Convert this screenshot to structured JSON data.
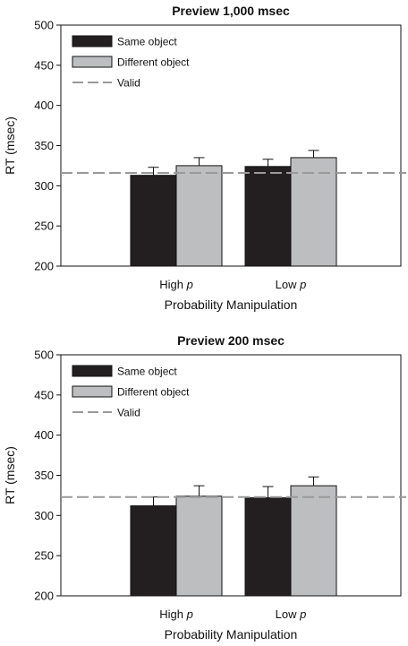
{
  "chart_data": [
    {
      "type": "bar",
      "title": "Preview 1,000 msec",
      "xlabel": "Probability Manipulation",
      "ylabel": "RT (msec)",
      "ylim": [
        200,
        500
      ],
      "yticks": [
        200,
        250,
        300,
        350,
        400,
        450,
        500
      ],
      "categories": [
        {
          "main": "High",
          "italic": "p"
        },
        {
          "main": "Low",
          "italic": "p"
        }
      ],
      "series": [
        {
          "name": "Same object",
          "color": "#231f20",
          "values": [
            313,
            324
          ],
          "errors": [
            10,
            9
          ]
        },
        {
          "name": "Different object",
          "color": "#bcbec0",
          "values": [
            325,
            335
          ],
          "errors": [
            10,
            9
          ]
        }
      ],
      "reference_line": {
        "name": "Valid",
        "value": 316,
        "color": "#999999",
        "style": "dashed"
      },
      "legend_position": "top-left",
      "grid": false
    },
    {
      "type": "bar",
      "title": "Preview 200 msec",
      "xlabel": "Probability Manipulation",
      "ylabel": "RT (msec)",
      "ylim": [
        200,
        500
      ],
      "yticks": [
        200,
        250,
        300,
        350,
        400,
        450,
        500
      ],
      "categories": [
        {
          "main": "High",
          "italic": "p"
        },
        {
          "main": "Low",
          "italic": "p"
        }
      ],
      "series": [
        {
          "name": "Same object",
          "color": "#231f20",
          "values": [
            312,
            322
          ],
          "errors": [
            11,
            14
          ]
        },
        {
          "name": "Different object",
          "color": "#bcbec0",
          "values": [
            324,
            337
          ],
          "errors": [
            13,
            11
          ]
        }
      ],
      "reference_line": {
        "name": "Valid",
        "value": 323,
        "color": "#999999",
        "style": "dashed"
      },
      "legend_position": "top-left",
      "grid": false
    }
  ]
}
